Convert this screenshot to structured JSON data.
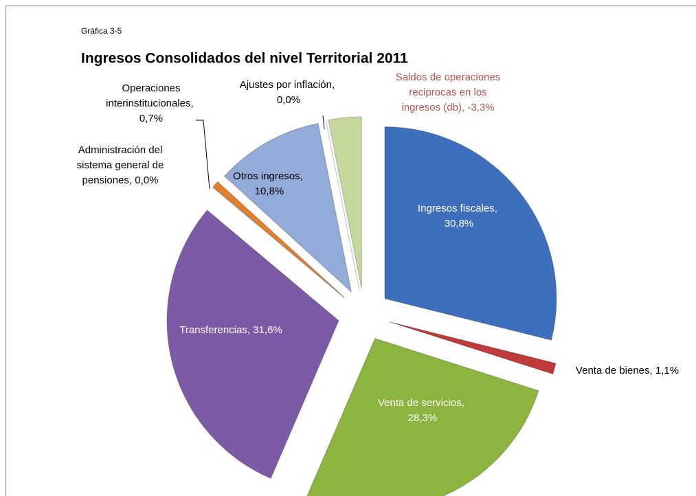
{
  "chart_data": {
    "type": "pie",
    "subtitle": "Gráfica 3-5",
    "title": "Ingresos Consolidados del nivel Territorial 2011",
    "categories": [
      "Ingresos fiscales",
      "Venta de bienes",
      "Venta de servicios",
      "Transferencias",
      "Administración del sistema general de pensiones",
      "Operaciones interinstitucionales",
      "Otros ingresos",
      "Ajustes por inflación",
      "Saldos de operaciones reciprocas en los ingresos (db)"
    ],
    "values": [
      30.8,
      1.1,
      28.3,
      31.6,
      0.0,
      0.7,
      10.8,
      0.0,
      -3.3
    ],
    "value_labels": [
      "30,8%",
      "1,1%",
      "28,3%",
      "31,6%",
      "0,0%",
      "0,7%",
      "10,8%",
      "0,0%",
      "-3,3%"
    ],
    "label_separator": ", ",
    "colors": [
      "#3d6fbd",
      "#c0393b",
      "#8db43e",
      "#7b5aa6",
      "#4bacc6",
      "#e2802b",
      "#93abd8",
      "#f79646",
      "#c4d99b"
    ]
  }
}
